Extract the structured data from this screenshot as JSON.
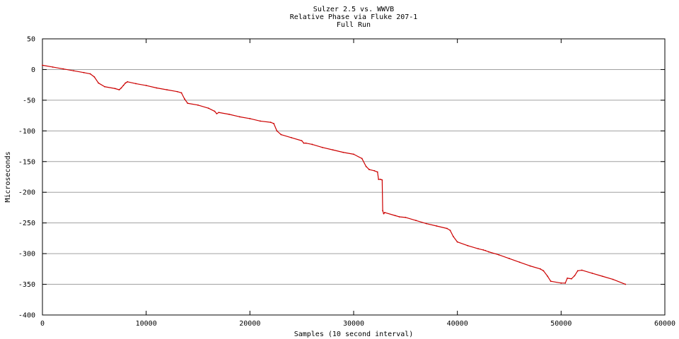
{
  "chart_data": {
    "type": "line",
    "title_lines": [
      "Sulzer 2.5 vs. WWVB",
      "Relative Phase via Fluke 207-1",
      "Full Run"
    ],
    "xlabel": "Samples (10 second interval)",
    "ylabel": "Microseconds",
    "xlim": [
      0,
      60000
    ],
    "ylim": [
      -400,
      50
    ],
    "x_ticks": [
      0,
      10000,
      20000,
      30000,
      40000,
      50000,
      60000
    ],
    "y_ticks": [
      50,
      0,
      -50,
      -100,
      -150,
      -200,
      -250,
      -300,
      -350,
      -400
    ],
    "grid": "horizontal",
    "line_color": "#cc0000",
    "series": [
      {
        "x": [
          0,
          1000,
          2000,
          3000,
          4000,
          4600,
          5000,
          5400,
          6000,
          7000,
          7400,
          7600,
          7800,
          8000,
          8200,
          9000,
          10000,
          11000,
          12000,
          13000,
          13400,
          13700,
          14000,
          15000,
          16000,
          16600,
          16800,
          17000,
          18000,
          19000,
          20000,
          21000,
          22000,
          22300,
          22600,
          23000,
          24000,
          25000,
          25200,
          25400,
          26000,
          27000,
          28000,
          29000,
          30000,
          30800,
          31200,
          31500,
          32000,
          32300,
          32400,
          32600,
          32750,
          32800,
          32900,
          33000,
          34000,
          34400,
          35000,
          36000,
          37000,
          38000,
          39000,
          39300,
          39600,
          40000,
          41000,
          42000,
          42500,
          42700,
          43000,
          44000,
          45000,
          46000,
          47000,
          48000,
          48300,
          48700,
          49000,
          50000,
          50400,
          50600,
          51000,
          51300,
          51600,
          52000,
          53000,
          54000,
          55000,
          56200
        ],
        "y": [
          7,
          4,
          1,
          -2,
          -5,
          -7,
          -12,
          -22,
          -28,
          -31,
          -33,
          -30,
          -26,
          -22,
          -20,
          -23,
          -26,
          -30,
          -33,
          -36,
          -38,
          -48,
          -55,
          -58,
          -63,
          -68,
          -72,
          -70,
          -73,
          -77,
          -80,
          -84,
          -86,
          -88,
          -100,
          -106,
          -111,
          -116,
          -120,
          -120,
          -122,
          -127,
          -131,
          -135,
          -138,
          -145,
          -158,
          -163,
          -165,
          -167,
          -179,
          -179,
          -180,
          -230,
          -235,
          -233,
          -238,
          -240,
          -241,
          -246,
          -251,
          -255,
          -259,
          -262,
          -272,
          -281,
          -287,
          -292,
          -294,
          -295,
          -297,
          -302,
          -308,
          -314,
          -320,
          -325,
          -328,
          -337,
          -345,
          -348,
          -348,
          -340,
          -341,
          -336,
          -328,
          -327,
          -332,
          -337,
          -342,
          -350
        ]
      }
    ]
  }
}
